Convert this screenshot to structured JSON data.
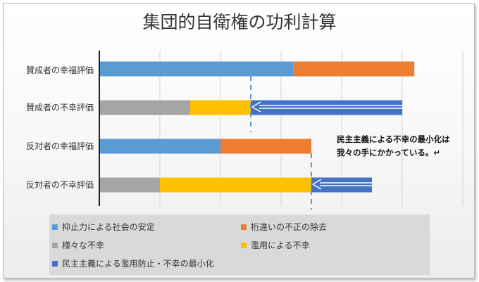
{
  "chart_data": {
    "type": "bar",
    "orientation": "horizontal",
    "stacked": true,
    "title": "集団的自衛権の功利計算",
    "categories": [
      "賛成者の幸福評価",
      "賛成者の不幸評価",
      "反対者の幸福評価",
      "反対者の不幸評価"
    ],
    "series": [
      {
        "name": "抑止力による社会の安定",
        "color": "#5b9bd5",
        "values": [
          3.2,
          0,
          2.0,
          0
        ]
      },
      {
        "name": "桁違いの不正の除去",
        "color": "#ed7d31",
        "values": [
          2.0,
          0,
          1.5,
          0
        ]
      },
      {
        "name": "様々な不幸",
        "color": "#a5a5a5",
        "values": [
          0,
          1.5,
          0,
          1.0
        ]
      },
      {
        "name": "濫用による不幸",
        "color": "#ffc000",
        "values": [
          0,
          1.0,
          0,
          2.5
        ]
      },
      {
        "name": "民主主義による濫用防止・不幸の最小化",
        "color": "#4472c4",
        "values": [
          0,
          2.5,
          0,
          1.0
        ]
      }
    ],
    "xlim": [
      0,
      6
    ],
    "xticks": [
      0,
      1,
      2,
      3,
      4,
      5,
      6
    ],
    "grid": true,
    "legend": "bottom",
    "annotation": [
      "民主主義による不幸の最小化は",
      "我々の手にかかっている。↵"
    ]
  }
}
